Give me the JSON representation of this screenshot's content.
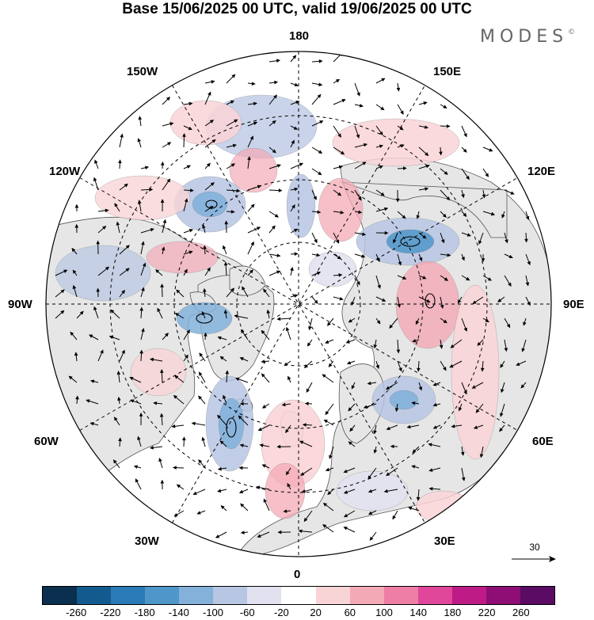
{
  "title": "Base 15/06/2025 00 UTC, valid 19/06/2025 00 UTC",
  "brand": "MODES",
  "brand_mark": "©",
  "longitude_labels": {
    "top": "180",
    "top_left": "150W",
    "top_right": "150E",
    "upper_left": "120W",
    "upper_right": "120E",
    "left": "90W",
    "right": "90E",
    "lower_left": "60W",
    "lower_right": "60E",
    "bottom_left": "30W",
    "bottom_right": "30E",
    "bottom": "0"
  },
  "reference_vector": {
    "label": "30"
  },
  "colorbar": {
    "colors": [
      "#0b2f4e",
      "#135b8f",
      "#2b7ab8",
      "#4f97c9",
      "#83b1da",
      "#b7c6e3",
      "#e2e1ef",
      "#ffffff",
      "#f9d4d7",
      "#f4a9b6",
      "#ee7ea6",
      "#e0479a",
      "#bf1b86",
      "#8e0e75",
      "#5a0b64"
    ],
    "ticks": [
      "-260",
      "-220",
      "-180",
      "-140",
      "-100",
      "-60",
      "-20",
      "20",
      "60",
      "100",
      "140",
      "180",
      "220",
      "260"
    ]
  },
  "colors": {
    "land": "#e8e8e8",
    "ocean": "#ffffff",
    "graticule": "#000000",
    "coastline": "#555555"
  }
}
